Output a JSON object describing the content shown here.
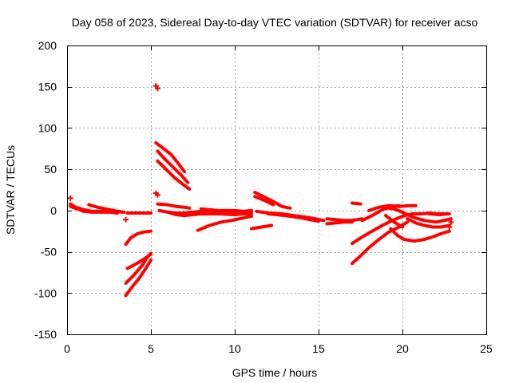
{
  "chart_data": {
    "type": "scatter",
    "title": "Day 058 of 2023, Sidereal Day-to-day VTEC variation (SDTVAR) for receiver acso",
    "xlabel": "GPS time / hours",
    "ylabel": "SDTVAR / TECUs",
    "xlim": [
      0,
      25
    ],
    "ylim": [
      -150,
      200
    ],
    "xticks": [
      0,
      5,
      10,
      15,
      20,
      25
    ],
    "yticks": [
      -150,
      -100,
      -50,
      0,
      50,
      100,
      150,
      200
    ],
    "grid": true,
    "marker": "+",
    "color": "#ff0000",
    "series": [
      {
        "name": "s1",
        "points": [
          [
            0.2,
            8
          ],
          [
            0.5,
            4
          ],
          [
            1,
            1
          ],
          [
            1.5,
            -1
          ],
          [
            2,
            -1
          ],
          [
            2.5,
            -1
          ],
          [
            3,
            -1
          ],
          [
            3.4,
            -2
          ]
        ]
      },
      {
        "name": "s2",
        "points": [
          [
            0.2,
            5
          ],
          [
            0.6,
            2
          ],
          [
            1,
            -1
          ],
          [
            1.5,
            -2
          ],
          [
            2,
            -2
          ],
          [
            2.6,
            -2
          ],
          [
            3,
            -3
          ]
        ]
      },
      {
        "name": "s3",
        "points": [
          [
            1.3,
            7
          ],
          [
            1.8,
            4
          ],
          [
            2.3,
            2
          ],
          [
            2.8,
            0
          ],
          [
            3.3,
            -2
          ]
        ]
      },
      {
        "name": "s4",
        "points": [
          [
            3.6,
            -3
          ],
          [
            4,
            -3
          ],
          [
            4.5,
            -3
          ],
          [
            5,
            -3
          ]
        ]
      },
      {
        "name": "s5",
        "points": [
          [
            3.5,
            -41
          ],
          [
            3.8,
            -33
          ],
          [
            4.2,
            -28
          ],
          [
            4.6,
            -26
          ],
          [
            5,
            -25
          ]
        ]
      },
      {
        "name": "s6",
        "points": [
          [
            3.6,
            -70
          ],
          [
            4,
            -66
          ],
          [
            4.5,
            -60
          ],
          [
            5,
            -53
          ]
        ]
      },
      {
        "name": "s7",
        "points": [
          [
            3.5,
            -103
          ],
          [
            3.9,
            -92
          ],
          [
            4.3,
            -82
          ],
          [
            4.7,
            -70
          ],
          [
            5,
            -60
          ]
        ]
      },
      {
        "name": "s8",
        "points": [
          [
            3.5,
            -88
          ],
          [
            4,
            -78
          ],
          [
            4.5,
            -66
          ],
          [
            4.8,
            -56
          ],
          [
            5,
            -52
          ]
        ]
      },
      {
        "name": "s9",
        "points": [
          [
            5.3,
            82
          ],
          [
            5.7,
            76
          ],
          [
            6.2,
            68
          ],
          [
            6.6,
            58
          ],
          [
            7,
            47
          ]
        ]
      },
      {
        "name": "s10",
        "points": [
          [
            5.4,
            72
          ],
          [
            5.8,
            63
          ],
          [
            6.3,
            53
          ],
          [
            6.8,
            43
          ],
          [
            7.2,
            34
          ]
        ]
      },
      {
        "name": "s11",
        "points": [
          [
            5.4,
            60
          ],
          [
            5.9,
            50
          ],
          [
            6.4,
            40
          ],
          [
            6.9,
            32
          ],
          [
            7.3,
            26
          ]
        ]
      },
      {
        "name": "s12",
        "points": [
          [
            5.4,
            8
          ],
          [
            6,
            7
          ],
          [
            6.5,
            5
          ],
          [
            7,
            4
          ],
          [
            7.3,
            3
          ]
        ]
      },
      {
        "name": "s13",
        "points": [
          [
            5.5,
            0
          ],
          [
            6,
            -2
          ],
          [
            6.5,
            -5
          ],
          [
            7,
            -6
          ],
          [
            7.5,
            -5
          ],
          [
            8,
            -4
          ]
        ]
      },
      {
        "name": "s14",
        "points": [
          [
            6,
            -2
          ],
          [
            6.5,
            -3
          ],
          [
            7,
            -3
          ],
          [
            7.5,
            -2
          ],
          [
            8,
            -1
          ],
          [
            9,
            -2
          ],
          [
            10,
            -2
          ],
          [
            11,
            -1
          ]
        ]
      },
      {
        "name": "s15",
        "points": [
          [
            7.8,
            -24
          ],
          [
            8.5,
            -18
          ],
          [
            9.2,
            -14
          ],
          [
            9.8,
            -12
          ],
          [
            10.5,
            -9
          ],
          [
            11,
            -7
          ]
        ]
      },
      {
        "name": "s16",
        "points": [
          [
            8,
            -4
          ],
          [
            9,
            -4
          ],
          [
            10,
            -5
          ],
          [
            10.5,
            -4
          ],
          [
            11,
            -4
          ]
        ]
      },
      {
        "name": "s17",
        "points": [
          [
            8,
            2
          ],
          [
            9,
            0
          ],
          [
            10,
            0
          ],
          [
            10.5,
            -1
          ],
          [
            11,
            0
          ]
        ]
      },
      {
        "name": "s18",
        "points": [
          [
            11.2,
            22
          ],
          [
            11.8,
            16
          ],
          [
            12.3,
            11
          ],
          [
            12.8,
            5
          ],
          [
            13.3,
            3
          ]
        ]
      },
      {
        "name": "s19",
        "points": [
          [
            11.2,
            17
          ],
          [
            11.8,
            12
          ],
          [
            12.3,
            7
          ]
        ]
      },
      {
        "name": "s20",
        "points": [
          [
            11,
            -22
          ],
          [
            11.6,
            -20
          ],
          [
            12.2,
            -18
          ]
        ]
      },
      {
        "name": "s21",
        "points": [
          [
            11.3,
            -1
          ],
          [
            12,
            -3
          ],
          [
            12.8,
            -4
          ],
          [
            13.5,
            -6
          ],
          [
            14.2,
            -8
          ],
          [
            14.8,
            -10
          ],
          [
            15.3,
            -12
          ]
        ]
      },
      {
        "name": "s22",
        "points": [
          [
            12,
            -4
          ],
          [
            13,
            -6
          ],
          [
            14,
            -9
          ],
          [
            15,
            -13
          ]
        ]
      },
      {
        "name": "s23",
        "points": [
          [
            15.5,
            -10
          ],
          [
            16,
            -11
          ],
          [
            16.5,
            -12
          ],
          [
            17,
            -12
          ],
          [
            17.6,
            -10
          ]
        ]
      },
      {
        "name": "s24",
        "points": [
          [
            15.5,
            -16
          ],
          [
            16,
            -15
          ],
          [
            16.5,
            -14
          ],
          [
            17,
            -14
          ]
        ]
      },
      {
        "name": "s25",
        "points": [
          [
            17,
            -64
          ],
          [
            17.5,
            -55
          ],
          [
            18,
            -45
          ],
          [
            18.6,
            -35
          ],
          [
            19.2,
            -26
          ],
          [
            19.8,
            -20
          ],
          [
            20.3,
            -14
          ]
        ]
      },
      {
        "name": "s26",
        "points": [
          [
            17,
            -40
          ],
          [
            17.6,
            -32
          ],
          [
            18.2,
            -25
          ],
          [
            18.8,
            -18
          ],
          [
            19.4,
            -12
          ],
          [
            20,
            -7
          ],
          [
            20.6,
            -4
          ],
          [
            21.2,
            -4
          ],
          [
            21.6,
            -3
          ],
          [
            22,
            -4
          ],
          [
            22.7,
            -4
          ]
        ]
      },
      {
        "name": "s27",
        "points": [
          [
            17.6,
            -12
          ],
          [
            18.2,
            -6
          ],
          [
            18.8,
            1
          ],
          [
            19.4,
            5
          ],
          [
            19.8,
            6
          ]
        ]
      },
      {
        "name": "s28",
        "points": [
          [
            18,
            0
          ],
          [
            18.6,
            4
          ],
          [
            19.2,
            6
          ],
          [
            19.8,
            5
          ],
          [
            20.4,
            6
          ],
          [
            20.8,
            6
          ]
        ]
      },
      {
        "name": "s29",
        "points": [
          [
            17,
            9
          ],
          [
            17.5,
            8
          ]
        ]
      },
      {
        "name": "s30",
        "points": [
          [
            19,
            -6
          ],
          [
            19.5,
            -14
          ],
          [
            20,
            -20
          ]
        ]
      },
      {
        "name": "s31",
        "points": [
          [
            19.3,
            -22
          ],
          [
            19.7,
            -30
          ],
          [
            20.1,
            -35
          ],
          [
            20.7,
            -37
          ],
          [
            21.3,
            -35
          ],
          [
            21.8,
            -32
          ],
          [
            22.3,
            -28
          ],
          [
            22.8,
            -25
          ]
        ]
      },
      {
        "name": "s32",
        "points": [
          [
            19.1,
            3
          ],
          [
            19.5,
            2
          ],
          [
            20,
            -2
          ],
          [
            20.6,
            -8
          ],
          [
            21.3,
            -12
          ],
          [
            22,
            -14
          ],
          [
            22.5,
            -12
          ],
          [
            22.9,
            -10
          ]
        ]
      },
      {
        "name": "s33",
        "points": [
          [
            20.3,
            -10
          ],
          [
            20.8,
            -15
          ],
          [
            21.3,
            -18
          ],
          [
            21.8,
            -20
          ],
          [
            22.3,
            -20
          ],
          [
            22.8,
            -18
          ]
        ]
      },
      {
        "name": "s34",
        "points": [
          [
            21.6,
            -4
          ],
          [
            22.2,
            -5
          ],
          [
            22.8,
            -4
          ]
        ]
      }
    ],
    "isolated_points": [
      [
        5.3,
        151
      ],
      [
        5.4,
        148
      ],
      [
        5.3,
        21
      ],
      [
        5.4,
        19
      ],
      [
        3.5,
        -11
      ],
      [
        0.2,
        15
      ],
      [
        22.9,
        -14
      ],
      [
        22.8,
        -20
      ]
    ]
  }
}
